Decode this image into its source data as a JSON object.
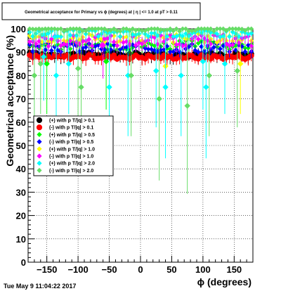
{
  "chart_data": {
    "type": "scatter",
    "title": "Geometrical acceptance for Primary vs ϕ (degrees) at | η | <= 1.0 at pT > 0.11",
    "xlabel": "ϕ (degrees)",
    "ylabel": "Geometrical acceptance (%)",
    "xlim": [
      -180,
      180
    ],
    "ylim": [
      0,
      100
    ],
    "x_ticks": [
      -150,
      -100,
      -50,
      0,
      50,
      100,
      150
    ],
    "y_ticks": [
      0,
      10,
      20,
      30,
      40,
      50,
      60,
      70,
      80,
      90,
      100
    ],
    "grid": true,
    "legend_position": "center-left",
    "timestamp": "Tue May  9 11:04:22 2017",
    "series": [
      {
        "name": "(+) with p T/|q| > 0.1",
        "color": "#000000",
        "marker": "circle",
        "typical": 89,
        "spread": 2,
        "outliers": []
      },
      {
        "name": "(-) with p T/|q| > 0.1",
        "color": "#ff0000",
        "marker": "circle",
        "typical": 88,
        "spread": 2,
        "outliers": []
      },
      {
        "name": "(+) with p T/|q| > 0.5",
        "color": "#00ff00",
        "marker": "diamond",
        "typical": 93,
        "spread": 4,
        "outliers": [
          [
            -150,
            85
          ],
          [
            -55,
            86
          ]
        ]
      },
      {
        "name": "(-) with p T/|q| > 0.5",
        "color": "#0000ff",
        "marker": "diamond",
        "typical": 92,
        "spread": 4,
        "outliers": []
      },
      {
        "name": "(+) with p T/|q| > 1.0",
        "color": "#ffff00",
        "marker": "diamond",
        "typical": 96,
        "spread": 4,
        "outliers": [
          [
            40,
            84
          ],
          [
            160,
            85
          ]
        ]
      },
      {
        "name": "(-) with p T/|q| > 1.0",
        "color": "#ff00ff",
        "marker": "diamond",
        "typical": 95,
        "spread": 5,
        "outliers": [
          [
            -60,
            93
          ]
        ]
      },
      {
        "name": "(+) with p T/|q| > 2.0",
        "color": "#00ffff",
        "marker": "diamond",
        "typical": 98,
        "spread": 3,
        "outliers": [
          [
            -155,
            88
          ],
          [
            -135,
            80
          ],
          [
            -115,
            85
          ],
          [
            -50,
            75
          ],
          [
            -20,
            80
          ],
          [
            25,
            82
          ],
          [
            40,
            75
          ],
          [
            65,
            80
          ],
          [
            100,
            86
          ],
          [
            105,
            75
          ],
          [
            135,
            85
          ]
        ]
      },
      {
        "name": "(-) with p T/|q| > 2.0",
        "color": "#66dd66",
        "marker": "diamond",
        "typical": 100,
        "spread": 2,
        "outliers": [
          [
            -170,
            80
          ],
          [
            -160,
            85
          ],
          [
            -100,
            83
          ],
          [
            -95,
            75
          ],
          [
            -15,
            80
          ],
          [
            30,
            70
          ],
          [
            75,
            67
          ],
          [
            110,
            80
          ],
          [
            155,
            82
          ]
        ]
      }
    ]
  }
}
